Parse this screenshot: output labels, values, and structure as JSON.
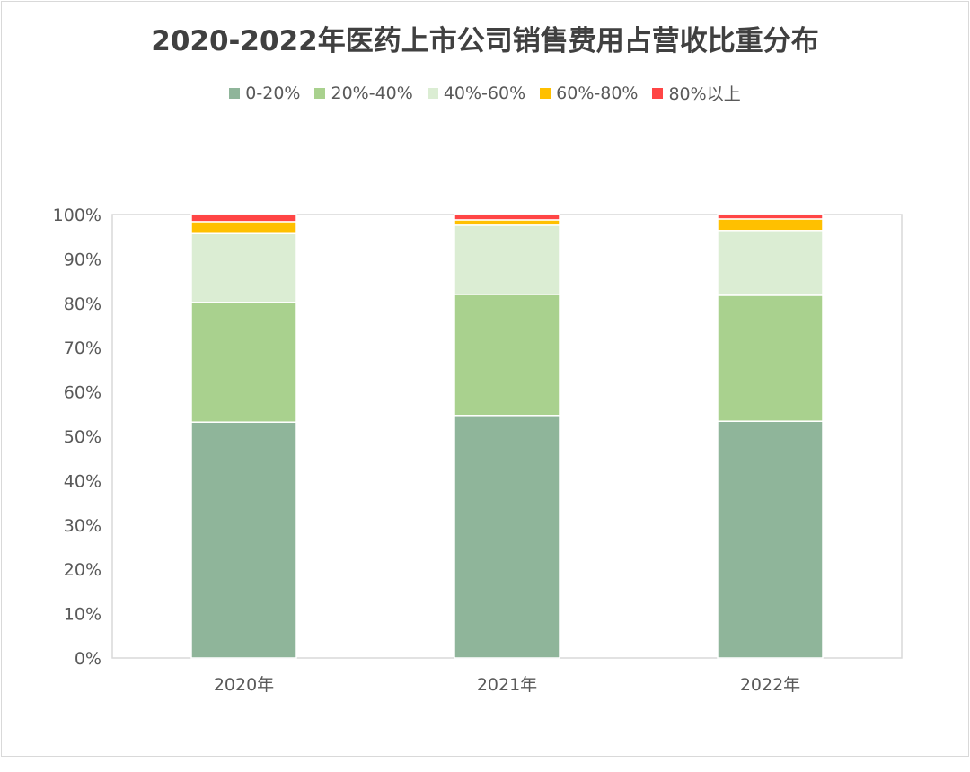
{
  "chart_data": {
    "type": "bar",
    "stacked": true,
    "title": "2020-2022年医药上市公司销售费用占营收比重分布",
    "categories": [
      "2020年",
      "2021年",
      "2022年"
    ],
    "series": [
      {
        "name": "0-20%",
        "color": "#8fb59a",
        "values": [
          53.2,
          54.7,
          53.4
        ]
      },
      {
        "name": "20%-40%",
        "color": "#a9d18e",
        "values": [
          27.0,
          27.3,
          28.4
        ]
      },
      {
        "name": "40%-60%",
        "color": "#dbedd3",
        "values": [
          15.5,
          15.6,
          14.6
        ]
      },
      {
        "name": "60%-80%",
        "color": "#ffc000",
        "values": [
          2.7,
          1.2,
          2.6
        ]
      },
      {
        "name": "80%以上",
        "color": "#ff4545",
        "values": [
          1.6,
          1.2,
          1.0
        ]
      }
    ],
    "yticks": [
      "0%",
      "10%",
      "20%",
      "30%",
      "40%",
      "50%",
      "60%",
      "70%",
      "80%",
      "90%",
      "100%"
    ],
    "ylim": [
      0,
      100
    ],
    "xlabel": "",
    "ylabel": "",
    "legend_position": "top",
    "grid": false
  }
}
